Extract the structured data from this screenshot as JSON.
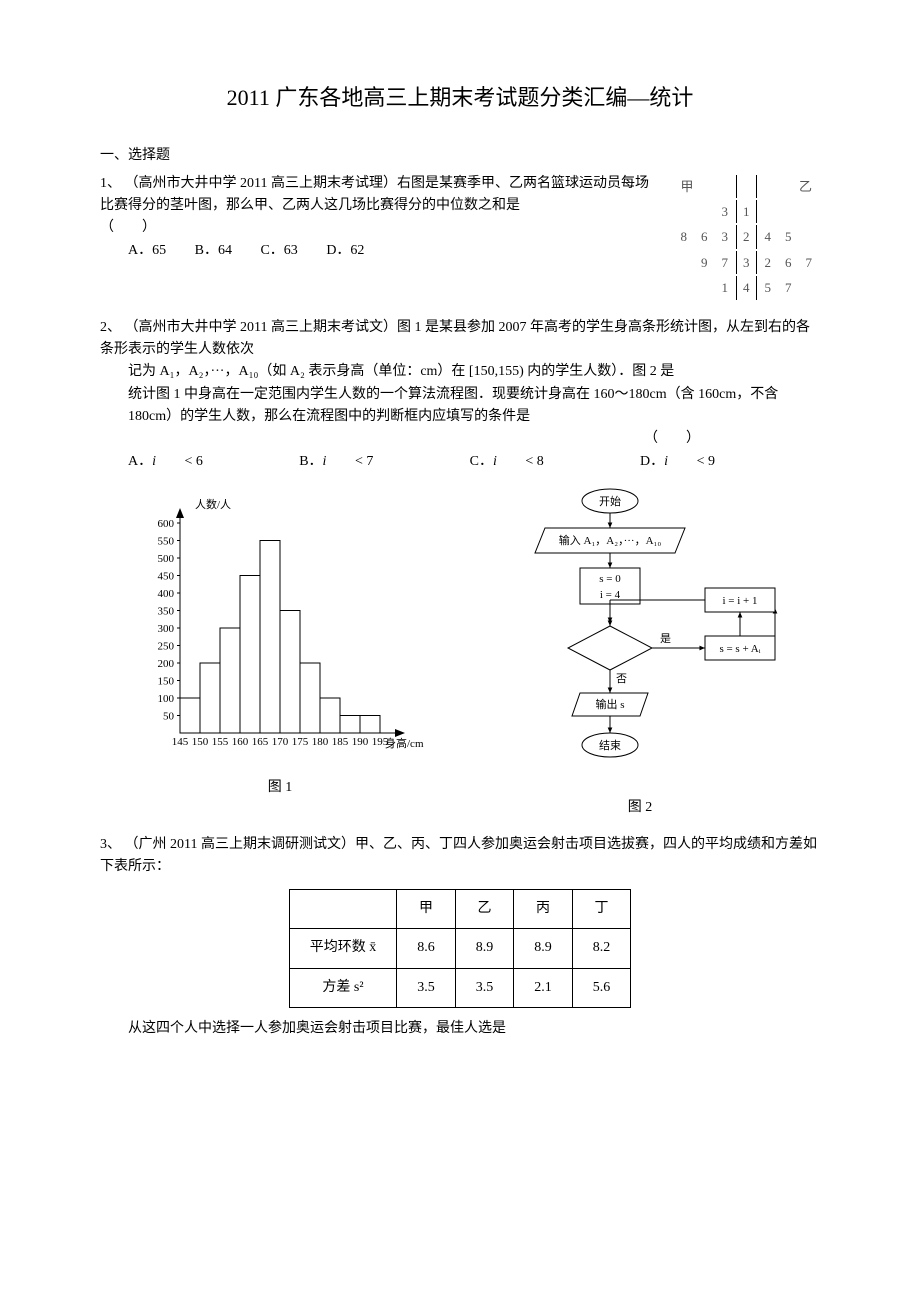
{
  "title": "2011 广东各地高三上期末考试题分类汇编—统计",
  "section1": "一、选择题",
  "q1": {
    "prefix": "1、",
    "source": "（高州市大井中学 2011 高三上期末考试理）右图是某赛季甲、乙两名篮球运动员每场比赛得分的茎叶图，那么甲、乙两人这几场比赛得分的中位数之和是",
    "blank": "（　　）",
    "options": [
      "A．65",
      "B．64",
      "C．63",
      "D．62"
    ],
    "stemleaf": {
      "head_left": "甲",
      "head_right": "乙",
      "rows": [
        {
          "left": [
            "",
            "",
            "3"
          ],
          "stem": "1",
          "right": [
            "",
            "",
            ""
          ]
        },
        {
          "left": [
            "8",
            "6",
            "3"
          ],
          "stem": "2",
          "right": [
            "4",
            "5",
            ""
          ]
        },
        {
          "left": [
            "",
            "9",
            "7"
          ],
          "stem": "3",
          "right": [
            "2",
            "6",
            "7"
          ]
        },
        {
          "left": [
            "",
            "",
            "1"
          ],
          "stem": "4",
          "right": [
            "5",
            "7",
            ""
          ]
        }
      ]
    }
  },
  "q2": {
    "prefix": "2、",
    "source_a": "（高州市大井中学 2011 高三上期末考试文）图 1 是某县参加 2007 年高考的学生身高条形统计图，从左到右的各条形表示的学生人数依次",
    "source_b": "记为 A₁，A₂，···，A₁₀（如 A₂ 表示身高（单位：cm）在 [150,155) 内的学生人数）．图 2 是",
    "source_c": "统计图 1 中身高在一定范围内学生人数的一个算法流程图．现要统计身高在 160～180cm（含 160cm，不含 180cm）的学生人数，那么在流程图中的判断框内应填写的条件是",
    "blank": "（　　）",
    "options": [
      "A．i < 6",
      "B．i < 7",
      "C．i < 8",
      "D．i < 9"
    ],
    "histogram": {
      "ylabel": "人数/人",
      "xlabel": "身高/cm",
      "ylim": [
        0,
        600
      ],
      "ytick_step": 50,
      "xticks": [
        "145",
        "150",
        "155",
        "160",
        "165",
        "170",
        "175",
        "180",
        "185",
        "190",
        "195"
      ],
      "values": [
        100,
        200,
        300,
        450,
        550,
        350,
        200,
        100,
        50,
        50
      ],
      "bar_color": "#ffffff",
      "border_color": "#000000",
      "caption": "图 1"
    },
    "flowchart": {
      "start": "开始",
      "input": "输入 A₁，A₂，···，A₁₀",
      "init1": "s = 0",
      "init2": "i = 4",
      "inc": "i = i + 1",
      "acc": "s = s + Aᵢ",
      "yes": "是",
      "no": "否",
      "out": "输出 s",
      "end": "结束",
      "caption": "图 2"
    }
  },
  "q3": {
    "prefix": "3、",
    "source": "（广州 2011 高三上期末调研测试文）甲、乙、丙、丁四人参加奥运会射击项目选拔赛，四人的平均成绩和方差如下表所示：",
    "table": {
      "cols": [
        "",
        "甲",
        "乙",
        "丙",
        "丁"
      ],
      "rows": [
        {
          "label": "平均环数 x̄",
          "vals": [
            "8.6",
            "8.9",
            "8.9",
            "8.2"
          ]
        },
        {
          "label": "方差 s²",
          "vals": [
            "3.5",
            "3.5",
            "2.1",
            "5.6"
          ]
        }
      ]
    },
    "tail": "从这四个人中选择一人参加奥运会射击项目比赛，最佳人选是"
  }
}
